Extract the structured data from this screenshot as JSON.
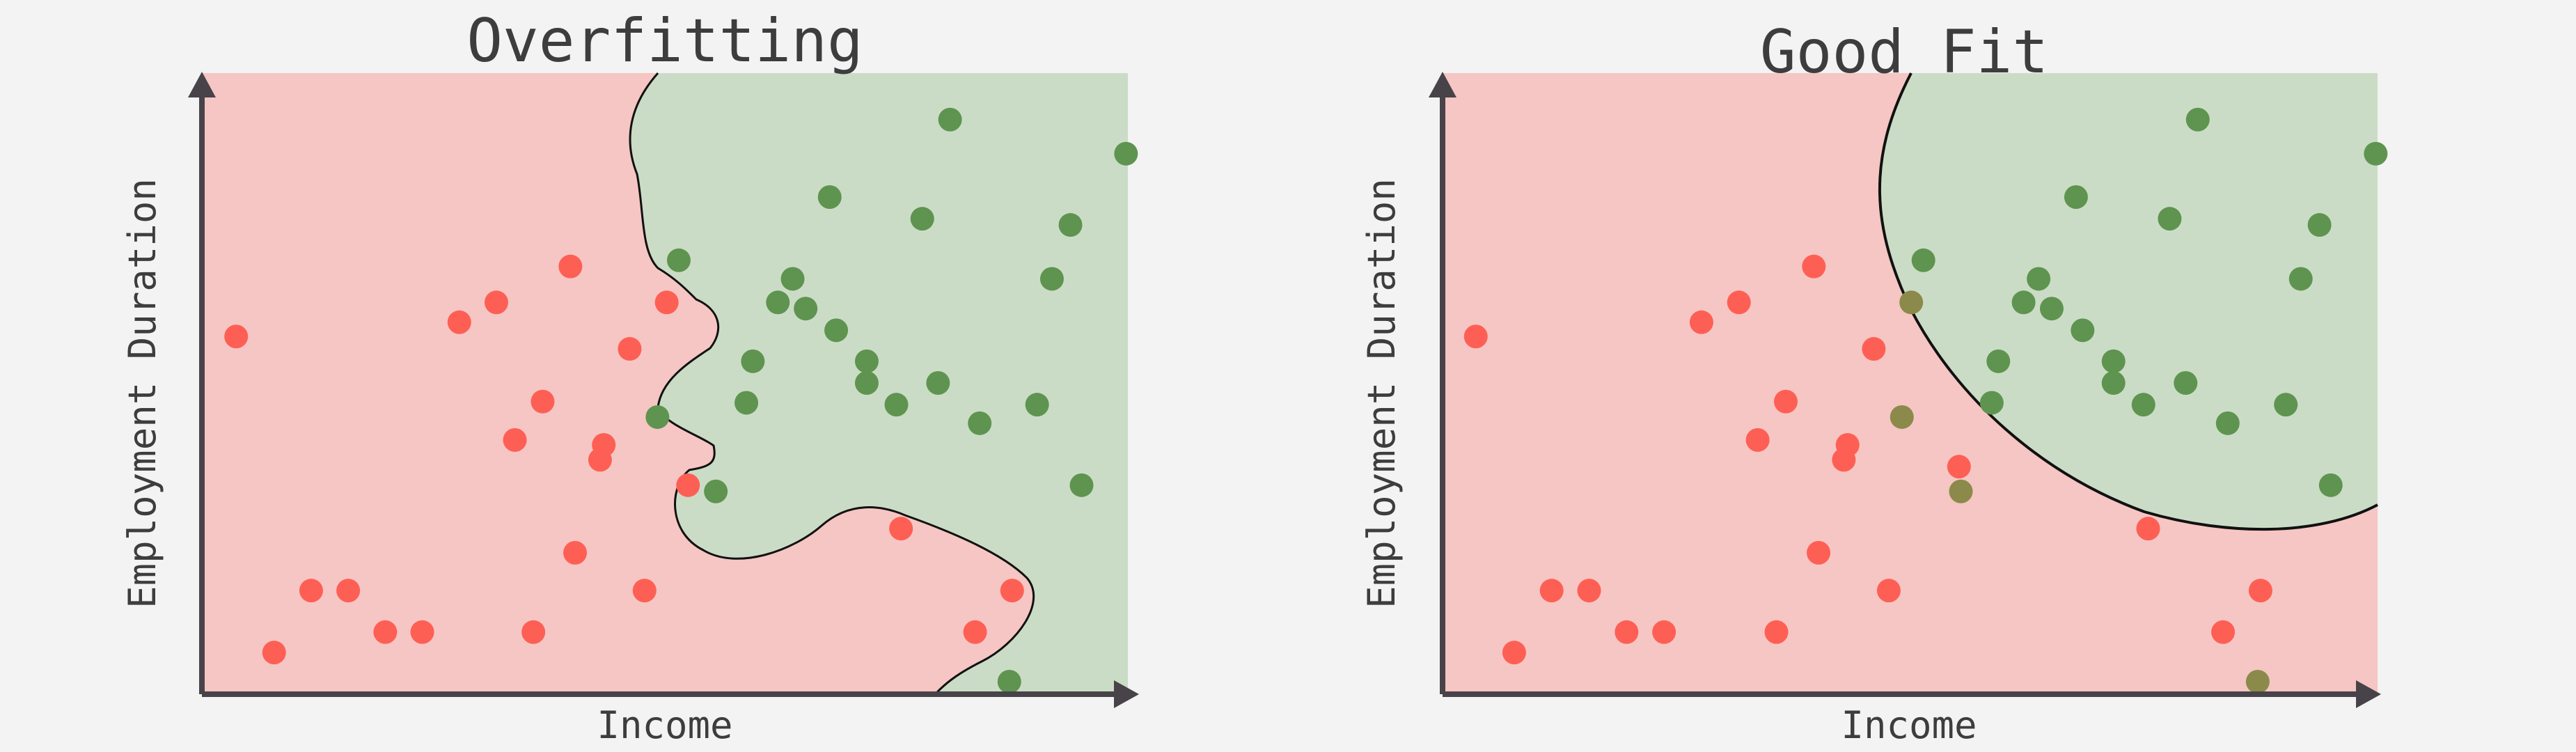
{
  "panels": [
    {
      "title": "Overfitting",
      "xlabel": "Income",
      "ylabel": "Employment Duration",
      "boundary": "overfit",
      "points": [
        {
          "c": "red",
          "x": 0.037,
          "y": 0.575
        },
        {
          "c": "red",
          "x": 0.118,
          "y": 0.165
        },
        {
          "c": "red",
          "x": 0.158,
          "y": 0.165
        },
        {
          "c": "red",
          "x": 0.078,
          "y": 0.065
        },
        {
          "c": "red",
          "x": 0.198,
          "y": 0.098
        },
        {
          "c": "red",
          "x": 0.238,
          "y": 0.098
        },
        {
          "c": "red",
          "x": 0.358,
          "y": 0.098
        },
        {
          "c": "red",
          "x": 0.278,
          "y": 0.598
        },
        {
          "c": "red",
          "x": 0.318,
          "y": 0.63
        },
        {
          "c": "red",
          "x": 0.398,
          "y": 0.688
        },
        {
          "c": "red",
          "x": 0.368,
          "y": 0.47
        },
        {
          "c": "red",
          "x": 0.338,
          "y": 0.408
        },
        {
          "c": "red",
          "x": 0.434,
          "y": 0.4
        },
        {
          "c": "red",
          "x": 0.43,
          "y": 0.376
        },
        {
          "c": "red",
          "x": 0.403,
          "y": 0.226
        },
        {
          "c": "red",
          "x": 0.478,
          "y": 0.165
        },
        {
          "c": "red",
          "x": 0.462,
          "y": 0.555
        },
        {
          "c": "red",
          "x": 0.525,
          "y": 0.335
        },
        {
          "c": "red",
          "x": 0.502,
          "y": 0.63
        },
        {
          "c": "red",
          "x": 0.755,
          "y": 0.265
        },
        {
          "c": "red",
          "x": 0.875,
          "y": 0.165
        },
        {
          "c": "red",
          "x": 0.835,
          "y": 0.098
        },
        {
          "c": "green",
          "x": 0.808,
          "y": 0.925
        },
        {
          "c": "green",
          "x": 0.998,
          "y": 0.87
        },
        {
          "c": "green",
          "x": 0.678,
          "y": 0.8
        },
        {
          "c": "green",
          "x": 0.778,
          "y": 0.765
        },
        {
          "c": "green",
          "x": 0.938,
          "y": 0.755
        },
        {
          "c": "green",
          "x": 0.918,
          "y": 0.668
        },
        {
          "c": "green",
          "x": 0.515,
          "y": 0.698
        },
        {
          "c": "green",
          "x": 0.638,
          "y": 0.668
        },
        {
          "c": "green",
          "x": 0.622,
          "y": 0.63
        },
        {
          "c": "green",
          "x": 0.652,
          "y": 0.62
        },
        {
          "c": "green",
          "x": 0.685,
          "y": 0.585
        },
        {
          "c": "green",
          "x": 0.595,
          "y": 0.535
        },
        {
          "c": "green",
          "x": 0.718,
          "y": 0.535
        },
        {
          "c": "green",
          "x": 0.718,
          "y": 0.5
        },
        {
          "c": "green",
          "x": 0.795,
          "y": 0.5
        },
        {
          "c": "green",
          "x": 0.588,
          "y": 0.468
        },
        {
          "c": "green",
          "x": 0.75,
          "y": 0.465
        },
        {
          "c": "green",
          "x": 0.492,
          "y": 0.445
        },
        {
          "c": "green",
          "x": 0.84,
          "y": 0.435
        },
        {
          "c": "green",
          "x": 0.902,
          "y": 0.465
        },
        {
          "c": "green",
          "x": 0.555,
          "y": 0.325
        },
        {
          "c": "green",
          "x": 0.95,
          "y": 0.335
        },
        {
          "c": "green",
          "x": 0.872,
          "y": 0.018
        }
      ]
    },
    {
      "title": "Good Fit",
      "xlabel": "Income",
      "ylabel": "Employment Duration",
      "boundary": "good",
      "points": [
        {
          "c": "red",
          "x": 0.037,
          "y": 0.575
        },
        {
          "c": "red",
          "x": 0.118,
          "y": 0.165
        },
        {
          "c": "red",
          "x": 0.158,
          "y": 0.165
        },
        {
          "c": "red",
          "x": 0.078,
          "y": 0.065
        },
        {
          "c": "red",
          "x": 0.198,
          "y": 0.098
        },
        {
          "c": "red",
          "x": 0.238,
          "y": 0.098
        },
        {
          "c": "red",
          "x": 0.358,
          "y": 0.098
        },
        {
          "c": "red",
          "x": 0.278,
          "y": 0.598
        },
        {
          "c": "red",
          "x": 0.318,
          "y": 0.63
        },
        {
          "c": "red",
          "x": 0.398,
          "y": 0.688
        },
        {
          "c": "red",
          "x": 0.368,
          "y": 0.47
        },
        {
          "c": "red",
          "x": 0.338,
          "y": 0.408
        },
        {
          "c": "red",
          "x": 0.434,
          "y": 0.4
        },
        {
          "c": "red",
          "x": 0.43,
          "y": 0.376
        },
        {
          "c": "red",
          "x": 0.403,
          "y": 0.226
        },
        {
          "c": "red",
          "x": 0.478,
          "y": 0.165
        },
        {
          "c": "red",
          "x": 0.462,
          "y": 0.555
        },
        {
          "c": "red",
          "x": 0.755,
          "y": 0.265
        },
        {
          "c": "red",
          "x": 0.875,
          "y": 0.165
        },
        {
          "c": "red",
          "x": 0.835,
          "y": 0.098
        },
        {
          "c": "olive",
          "x": 0.502,
          "y": 0.63
        },
        {
          "c": "olive",
          "x": 0.555,
          "y": 0.325
        },
        {
          "c": "olive",
          "x": 0.872,
          "y": 0.018
        },
        {
          "c": "olive",
          "x": 0.492,
          "y": 0.445
        },
        {
          "c": "red",
          "x": 0.553,
          "y": 0.365
        },
        {
          "c": "green",
          "x": 0.808,
          "y": 0.925
        },
        {
          "c": "green",
          "x": 0.998,
          "y": 0.87
        },
        {
          "c": "green",
          "x": 0.678,
          "y": 0.8
        },
        {
          "c": "green",
          "x": 0.778,
          "y": 0.765
        },
        {
          "c": "green",
          "x": 0.938,
          "y": 0.755
        },
        {
          "c": "green",
          "x": 0.918,
          "y": 0.668
        },
        {
          "c": "green",
          "x": 0.515,
          "y": 0.698
        },
        {
          "c": "green",
          "x": 0.638,
          "y": 0.668
        },
        {
          "c": "green",
          "x": 0.622,
          "y": 0.63
        },
        {
          "c": "green",
          "x": 0.652,
          "y": 0.62
        },
        {
          "c": "green",
          "x": 0.685,
          "y": 0.585
        },
        {
          "c": "green",
          "x": 0.595,
          "y": 0.535
        },
        {
          "c": "green",
          "x": 0.718,
          "y": 0.535
        },
        {
          "c": "green",
          "x": 0.718,
          "y": 0.5
        },
        {
          "c": "green",
          "x": 0.795,
          "y": 0.5
        },
        {
          "c": "green",
          "x": 0.588,
          "y": 0.468
        },
        {
          "c": "green",
          "x": 0.75,
          "y": 0.465
        },
        {
          "c": "green",
          "x": 0.84,
          "y": 0.435
        },
        {
          "c": "green",
          "x": 0.902,
          "y": 0.465
        },
        {
          "c": "green",
          "x": 0.95,
          "y": 0.335
        }
      ]
    }
  ],
  "colors": {
    "background": "#f3f3f3",
    "red_region": "#f5c6c3",
    "green_region": "#cbdcc6",
    "red_point": "#fe5f55",
    "green_point": "#5e944f",
    "olive_point": "#8b8a4a",
    "axis": "#474349",
    "boundary": "#111111"
  }
}
